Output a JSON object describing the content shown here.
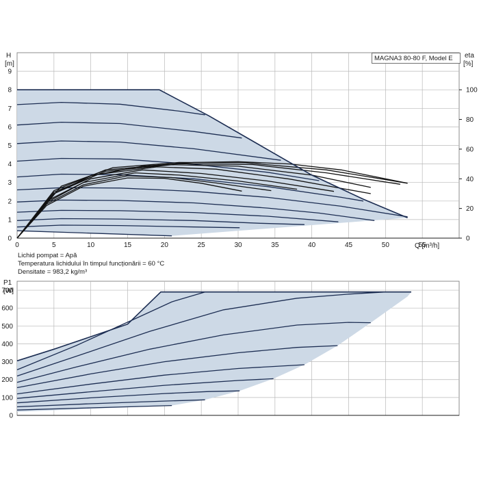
{
  "model_label": "MAGNA3 80-80 F, Model E",
  "notes": {
    "liquid": "Lichid pompat = Apă",
    "temperature": "Temperatura lichidului în timpul funcționării = 60 °C",
    "density": "Densitate = 983,2 kg/m³"
  },
  "chart_data": [
    {
      "id": "head",
      "type": "line",
      "x_axis": {
        "unit": "Q [m³/h]",
        "range": [
          0,
          60
        ],
        "ticks": [
          0,
          5,
          10,
          15,
          20,
          25,
          30,
          35,
          40,
          45,
          50,
          55
        ]
      },
      "y_axis": {
        "label_line1": "H",
        "label_line2": "[m]",
        "range": [
          0,
          10
        ],
        "ticks": [
          0,
          1,
          2,
          3,
          4,
          5,
          6,
          7,
          8,
          9
        ]
      },
      "y2_axis": {
        "label_line1": "eta",
        "label_line2": "[%]",
        "range": [
          0,
          125
        ],
        "ticks": [
          0,
          20,
          40,
          60,
          80,
          100
        ]
      },
      "grid": true,
      "max_curve": [
        [
          0,
          8.0
        ],
        [
          19.3,
          8.0
        ],
        [
          26,
          6.6
        ],
        [
          33,
          5.0
        ],
        [
          40,
          3.4
        ],
        [
          47,
          2.1
        ],
        [
          53,
          1.1
        ]
      ],
      "min_curve": [
        [
          0,
          0.4
        ],
        [
          21,
          0.12
        ]
      ],
      "head_curves": [
        [
          [
            0,
            7.2
          ],
          [
            6,
            7.32
          ],
          [
            14,
            7.22
          ],
          [
            22,
            6.85
          ],
          [
            25.5,
            6.65
          ]
        ],
        [
          [
            0,
            6.1
          ],
          [
            6,
            6.25
          ],
          [
            14,
            6.18
          ],
          [
            24,
            5.75
          ],
          [
            30.5,
            5.4
          ]
        ],
        [
          [
            0,
            5.1
          ],
          [
            6,
            5.24
          ],
          [
            14,
            5.18
          ],
          [
            24,
            4.82
          ],
          [
            35.8,
            4.2
          ]
        ],
        [
          [
            0,
            4.15
          ],
          [
            6,
            4.3
          ],
          [
            14,
            4.27
          ],
          [
            24,
            3.98
          ],
          [
            34,
            3.55
          ],
          [
            41,
            3.1
          ]
        ],
        [
          [
            0,
            3.3
          ],
          [
            6,
            3.45
          ],
          [
            14,
            3.42
          ],
          [
            24,
            3.2
          ],
          [
            34,
            2.78
          ],
          [
            44,
            2.2
          ],
          [
            47,
            2.0
          ]
        ],
        [
          [
            0,
            2.6
          ],
          [
            6,
            2.72
          ],
          [
            14,
            2.7
          ],
          [
            24,
            2.52
          ],
          [
            34,
            2.2
          ],
          [
            44,
            1.72
          ],
          [
            53,
            1.15
          ]
        ],
        [
          [
            0,
            1.95
          ],
          [
            6,
            2.05
          ],
          [
            14,
            2.03
          ],
          [
            24,
            1.9
          ],
          [
            34,
            1.62
          ],
          [
            41,
            1.35
          ],
          [
            48.5,
            0.95
          ]
        ],
        [
          [
            0,
            1.4
          ],
          [
            6,
            1.5
          ],
          [
            14,
            1.48
          ],
          [
            24,
            1.38
          ],
          [
            34,
            1.18
          ],
          [
            43.6,
            0.88
          ]
        ],
        [
          [
            0,
            0.95
          ],
          [
            6,
            1.05
          ],
          [
            14,
            1.03
          ],
          [
            24,
            0.95
          ],
          [
            33,
            0.8
          ],
          [
            39,
            0.73
          ]
        ],
        [
          [
            0,
            0.6
          ],
          [
            6,
            0.7
          ],
          [
            14,
            0.68
          ],
          [
            24,
            0.6
          ],
          [
            30.2,
            0.56
          ]
        ]
      ],
      "eta_curves": [
        [
          [
            0,
            0
          ],
          [
            4,
            22
          ],
          [
            9,
            35
          ],
          [
            15,
            40.6
          ],
          [
            20,
            40.3
          ],
          [
            25,
            37.0
          ],
          [
            30.5,
            31.7
          ]
        ],
        [
          [
            0,
            0
          ],
          [
            4,
            23
          ],
          [
            9,
            36
          ],
          [
            15,
            42
          ],
          [
            21,
            40.8
          ],
          [
            27,
            37.2
          ],
          [
            34.5,
            32
          ]
        ],
        [
          [
            0,
            0
          ],
          [
            4,
            24
          ],
          [
            9,
            37.5
          ],
          [
            16,
            44
          ],
          [
            22,
            42.5
          ],
          [
            30,
            38.5
          ],
          [
            38,
            33
          ]
        ],
        [
          [
            0,
            0
          ],
          [
            4,
            25
          ],
          [
            10,
            40
          ],
          [
            17,
            46
          ],
          [
            25,
            43.6
          ],
          [
            34,
            38.5
          ],
          [
            43,
            31.5
          ]
        ],
        [
          [
            0,
            0
          ],
          [
            5,
            30
          ],
          [
            11,
            43
          ],
          [
            19,
            48
          ],
          [
            27,
            46.5
          ],
          [
            37,
            39.8
          ],
          [
            48,
            30
          ]
        ],
        [
          [
            0,
            0
          ],
          [
            5,
            31
          ],
          [
            12,
            45
          ],
          [
            21,
            49.5
          ],
          [
            30,
            48.5
          ],
          [
            40,
            42.5
          ],
          [
            48,
            34.2
          ]
        ],
        [
          [
            0,
            0
          ],
          [
            5,
            32
          ],
          [
            12,
            46
          ],
          [
            22,
            50.2
          ],
          [
            32,
            49.6
          ],
          [
            42,
            44
          ],
          [
            52,
            36.3
          ]
        ],
        [
          [
            0,
            0
          ],
          [
            6,
            35
          ],
          [
            13,
            47.5
          ],
          [
            22,
            51
          ],
          [
            31,
            50.8
          ],
          [
            42,
            46
          ],
          [
            53,
            37
          ]
        ]
      ],
      "eta_max_curve": [
        [
          0,
          0
        ],
        [
          5,
          30
        ],
        [
          10,
          42
        ],
        [
          17,
          48.5
        ],
        [
          24,
          51
        ],
        [
          30,
          51.5
        ],
        [
          37,
          50
        ],
        [
          44,
          46
        ],
        [
          53,
          37
        ]
      ]
    },
    {
      "id": "power",
      "type": "line",
      "x_axis": {
        "range": [
          0,
          60
        ]
      },
      "y_axis": {
        "label_line1": "P1",
        "label_line2": "[W]",
        "range": [
          0,
          750
        ],
        "ticks": [
          0,
          100,
          200,
          300,
          400,
          500,
          600,
          700
        ]
      },
      "grid": true,
      "max_curve": [
        [
          0,
          305
        ],
        [
          5,
          370
        ],
        [
          10,
          440
        ],
        [
          15,
          510
        ],
        [
          19.5,
          690
        ],
        [
          53.5,
          690
        ]
      ],
      "region_boundary": [
        [
          53.5,
          690
        ],
        [
          53,
          665
        ],
        [
          48,
          518
        ],
        [
          43.5,
          390
        ],
        [
          39,
          283
        ],
        [
          34.8,
          205
        ],
        [
          30.2,
          137
        ],
        [
          25.5,
          87
        ],
        [
          21,
          55
        ],
        [
          0,
          20
        ]
      ],
      "power_curves": [
        [
          [
            0,
            255
          ],
          [
            8,
            390
          ],
          [
            16,
            540
          ],
          [
            21,
            635
          ],
          [
            25.5,
            690
          ]
        ],
        [
          [
            0,
            220
          ],
          [
            8,
            330
          ],
          [
            18,
            470
          ],
          [
            28,
            590
          ],
          [
            38,
            655
          ],
          [
            45,
            678
          ],
          [
            50,
            690
          ]
        ],
        [
          [
            0,
            185
          ],
          [
            8,
            270
          ],
          [
            18,
            370
          ],
          [
            28,
            450
          ],
          [
            38,
            505
          ],
          [
            45,
            520
          ],
          [
            48,
            518
          ]
        ],
        [
          [
            0,
            155
          ],
          [
            10,
            232
          ],
          [
            20,
            300
          ],
          [
            30,
            350
          ],
          [
            38,
            380
          ],
          [
            43.5,
            390
          ]
        ],
        [
          [
            0,
            120
          ],
          [
            10,
            175
          ],
          [
            20,
            225
          ],
          [
            30,
            262
          ],
          [
            39,
            283
          ]
        ],
        [
          [
            0,
            95
          ],
          [
            10,
            132
          ],
          [
            20,
            168
          ],
          [
            30,
            195
          ],
          [
            34.8,
            205
          ]
        ],
        [
          [
            0,
            70
          ],
          [
            10,
            98
          ],
          [
            20,
            122
          ],
          [
            26,
            133
          ],
          [
            30.2,
            137
          ]
        ],
        [
          [
            0,
            48
          ],
          [
            10,
            65
          ],
          [
            20,
            80
          ],
          [
            25.5,
            87
          ]
        ],
        [
          [
            0,
            30
          ],
          [
            10,
            42
          ],
          [
            17,
            50
          ],
          [
            21,
            55
          ]
        ]
      ]
    }
  ]
}
